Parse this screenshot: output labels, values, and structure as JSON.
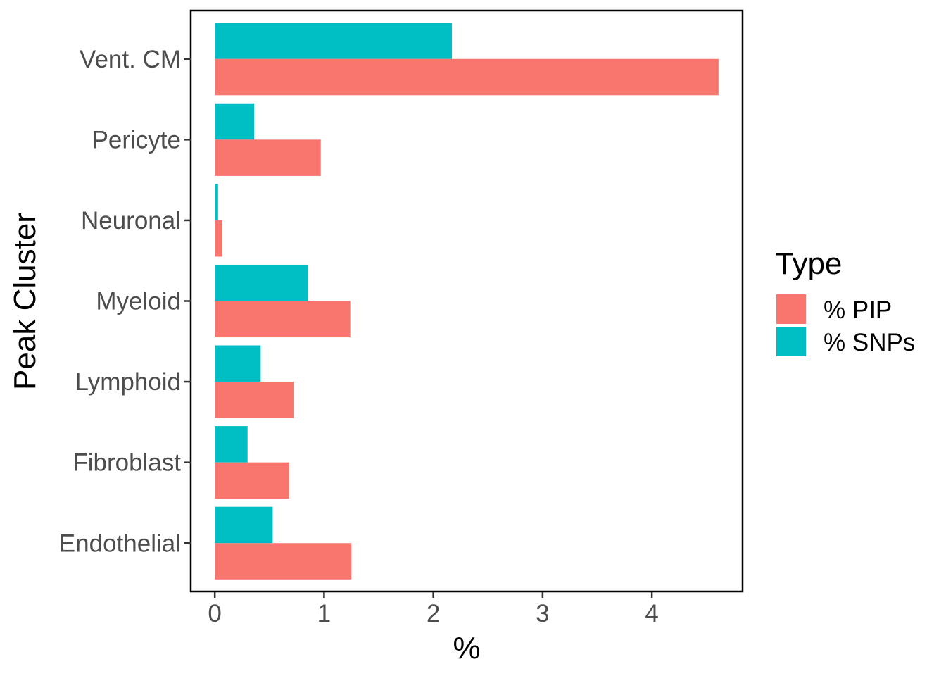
{
  "chart_data": {
    "type": "bar",
    "orientation": "horizontal",
    "categories": [
      "Vent. CM",
      "Pericyte",
      "Neuronal",
      "Myeloid",
      "Lymphoid",
      "Fibroblast",
      "Endothelial"
    ],
    "series": [
      {
        "name": "% PIP",
        "color": "#F8766D",
        "values": [
          4.61,
          0.97,
          0.07,
          1.24,
          0.72,
          0.68,
          1.25
        ]
      },
      {
        "name": "% SNPs",
        "color": "#00BFC4",
        "values": [
          2.17,
          0.36,
          0.03,
          0.85,
          0.42,
          0.3,
          0.53
        ]
      }
    ],
    "xlabel": "%",
    "ylabel": "Peak Cluster",
    "xlim": [
      -0.22,
      4.83
    ],
    "xticks": [
      0,
      1,
      2,
      3,
      4
    ],
    "legend": {
      "title": "Type",
      "placement": "right"
    },
    "grid": false
  }
}
